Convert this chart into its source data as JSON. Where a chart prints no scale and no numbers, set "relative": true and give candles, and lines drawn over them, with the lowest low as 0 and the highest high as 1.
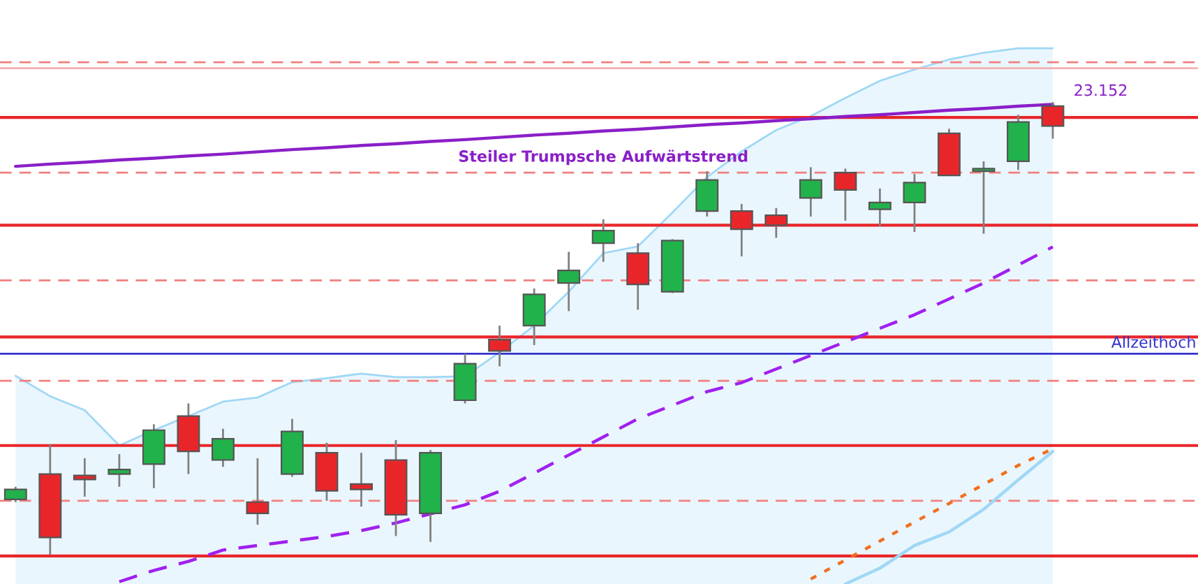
{
  "chart_data": {
    "type": "candlestick",
    "relative": true,
    "categories": [
      null,
      null,
      null,
      null,
      null,
      null,
      null,
      null,
      null,
      null,
      null,
      null,
      null,
      null,
      null,
      null,
      null,
      null,
      null,
      null,
      null,
      null,
      null,
      null,
      null,
      null,
      null,
      null,
      null,
      null,
      null
    ],
    "colors": [
      "#22b24c",
      "#e8262a",
      "#e8262a",
      "#22b24c",
      "#22b24c",
      "#e8262a",
      "#22b24c",
      "#e8262a",
      "#22b24c",
      "#e8262a",
      "#e8262a",
      "#e8262a",
      "#22b24c",
      "#22b24c",
      "#e8262a",
      "#22b24c",
      "#22b24c",
      "#22b24c",
      "#e8262a",
      "#22b24c",
      "#22b24c",
      "#e8262a",
      "#e8262a",
      "#22b24c",
      "#e8262a",
      "#22b24c",
      "#22b24c",
      "#e8262a",
      "#22b24c",
      "#22b24c",
      "#e8262a"
    ],
    "ohlc": [
      [
        0.122,
        0.15,
        0.116,
        0.144
      ],
      [
        0.178,
        0.244,
        0,
        0.038
      ],
      [
        0.175,
        0.213,
        0.128,
        0.166
      ],
      [
        0.178,
        0.222,
        0.15,
        0.188
      ],
      [
        0.2,
        0.288,
        0.147,
        0.275
      ],
      [
        0.306,
        0.334,
        0.178,
        0.228
      ],
      [
        0.209,
        0.278,
        0.194,
        0.256
      ],
      [
        0.116,
        0.213,
        0.066,
        0.091
      ],
      [
        0.178,
        0.3,
        0.172,
        0.272
      ],
      [
        0.225,
        0.247,
        0.119,
        0.141
      ],
      [
        0.156,
        0.225,
        0.106,
        0.144
      ],
      [
        0.209,
        0.253,
        0.041,
        0.088
      ],
      [
        0.091,
        0.231,
        0.028,
        0.225
      ],
      [
        0.341,
        0.444,
        0.334,
        0.422
      ],
      [
        0.475,
        0.506,
        0.416,
        0.45
      ],
      [
        0.506,
        0.588,
        0.463,
        0.575
      ],
      [
        0.6,
        0.669,
        0.538,
        0.628
      ],
      [
        0.688,
        0.741,
        0.647,
        0.716
      ],
      [
        0.666,
        0.688,
        0.541,
        0.597
      ],
      [
        0.581,
        0.697,
        0.578,
        0.694
      ],
      [
        0.759,
        0.847,
        0.747,
        0.828
      ],
      [
        0.759,
        0.775,
        0.659,
        0.719
      ],
      [
        0.75,
        0.766,
        0.7,
        0.728
      ],
      [
        0.788,
        0.856,
        0.747,
        0.828
      ],
      [
        0.844,
        0.853,
        0.738,
        0.806
      ],
      [
        0.763,
        0.809,
        0.725,
        0.778
      ],
      [
        0.778,
        0.841,
        0.713,
        0.822
      ],
      [
        0.931,
        0.941,
        0.838,
        0.838
      ],
      [
        0.847,
        0.869,
        0.709,
        0.853
      ],
      [
        0.869,
        0.972,
        0.85,
        0.956
      ],
      [
        0.991,
        1,
        0.919,
        0.947
      ]
    ],
    "series": [
      {
        "type": "area",
        "color": "#9fd8f5",
        "values": [
          0.395,
          0.35,
          0.319,
          0.241,
          0.275,
          0.306,
          0.338,
          0.347,
          0.381,
          0.39,
          0.4,
          0.392,
          0.392,
          0.394,
          0.447,
          0.506,
          0.581,
          0.666,
          0.681,
          0.756,
          0.834,
          0.891,
          0.938,
          0.969,
          1.009,
          1.047,
          1.072,
          1.094,
          1.109,
          1.119,
          1.119
        ]
      },
      {
        "type": "line",
        "color": "#9fd8f5",
        "line_style": "solid",
        "values": [
          null,
          null,
          null,
          null,
          null,
          null,
          null,
          null,
          null,
          null,
          null,
          null,
          null,
          null,
          null,
          null,
          null,
          null,
          null,
          null,
          null,
          null,
          null,
          null,
          -0.065,
          -0.03,
          0.02,
          0.05,
          0.1,
          0.165,
          0.228
        ]
      },
      {
        "type": "line",
        "color": "#a020f0",
        "line_style": "dashed",
        "values": [
          null,
          null,
          null,
          -0.06,
          -0.035,
          -0.015,
          0.01,
          0.02,
          0.03,
          0.04,
          0.053,
          0.07,
          0.09,
          0.11,
          0.14,
          0.18,
          0.22,
          0.26,
          0.3,
          0.33,
          0.36,
          0.38,
          0.41,
          0.44,
          0.47,
          0.5,
          0.53,
          0.565,
          0.6,
          0.64,
          0.68
        ]
      },
      {
        "type": "line",
        "color": "#f07020",
        "line_style": "dotted",
        "values": [
          null,
          null,
          null,
          null,
          null,
          null,
          null,
          null,
          null,
          null,
          null,
          null,
          null,
          null,
          null,
          null,
          null,
          null,
          null,
          null,
          null,
          null,
          null,
          -0.054,
          -0.012,
          0.03,
          0.072,
          0.113,
          0.155,
          0.197,
          0.234
        ]
      },
      {
        "type": "line",
        "color": "#8a1fc8",
        "line_style": "solid",
        "name": "Steiler Trumpsche Aufwärtstrend",
        "values": [
          0.858,
          0.863,
          0.867,
          0.872,
          0.876,
          0.881,
          0.885,
          0.89,
          0.895,
          0.899,
          0.904,
          0.908,
          0.913,
          0.917,
          0.922,
          0.927,
          0.931,
          0.936,
          0.94,
          0.945,
          0.95,
          0.954,
          0.959,
          0.963,
          0.968,
          0.972,
          0.977,
          0.982,
          0.986,
          0.991,
          0.995
        ]
      }
    ],
    "ref_lines": [
      {
        "axis": "y",
        "value": 1.088,
        "color": "#f08080",
        "line_style": "dashed"
      },
      {
        "axis": "y",
        "value": 1.075,
        "color": "#f4b0b0",
        "line_style": "solid"
      },
      {
        "axis": "y",
        "value": 0.966,
        "color": "#e8262a",
        "line_style": "solid"
      },
      {
        "axis": "y",
        "value": 0.844,
        "color": "#f08080",
        "line_style": "dashed"
      },
      {
        "axis": "y",
        "value": 0.728,
        "color": "#e8262a",
        "line_style": "solid"
      },
      {
        "axis": "y",
        "value": 0.606,
        "color": "#f08080",
        "line_style": "dashed"
      },
      {
        "axis": "y",
        "value": 0.481,
        "color": "#e8262a",
        "line_style": "solid"
      },
      {
        "axis": "y",
        "value": 0.444,
        "color": "#3333cc",
        "line_style": "solid",
        "label": "Allzeithoch"
      },
      {
        "axis": "y",
        "value": 0.384,
        "color": "#f08080",
        "line_style": "dashed"
      },
      {
        "axis": "y",
        "value": 0.241,
        "color": "#e8262a",
        "line_style": "solid"
      },
      {
        "axis": "y",
        "value": 0.119,
        "color": "#f08080",
        "line_style": "dashed"
      },
      {
        "axis": "y",
        "value": -0.003,
        "color": "#e8262a",
        "line_style": "solid"
      }
    ],
    "annotations": [
      "23.152"
    ]
  }
}
